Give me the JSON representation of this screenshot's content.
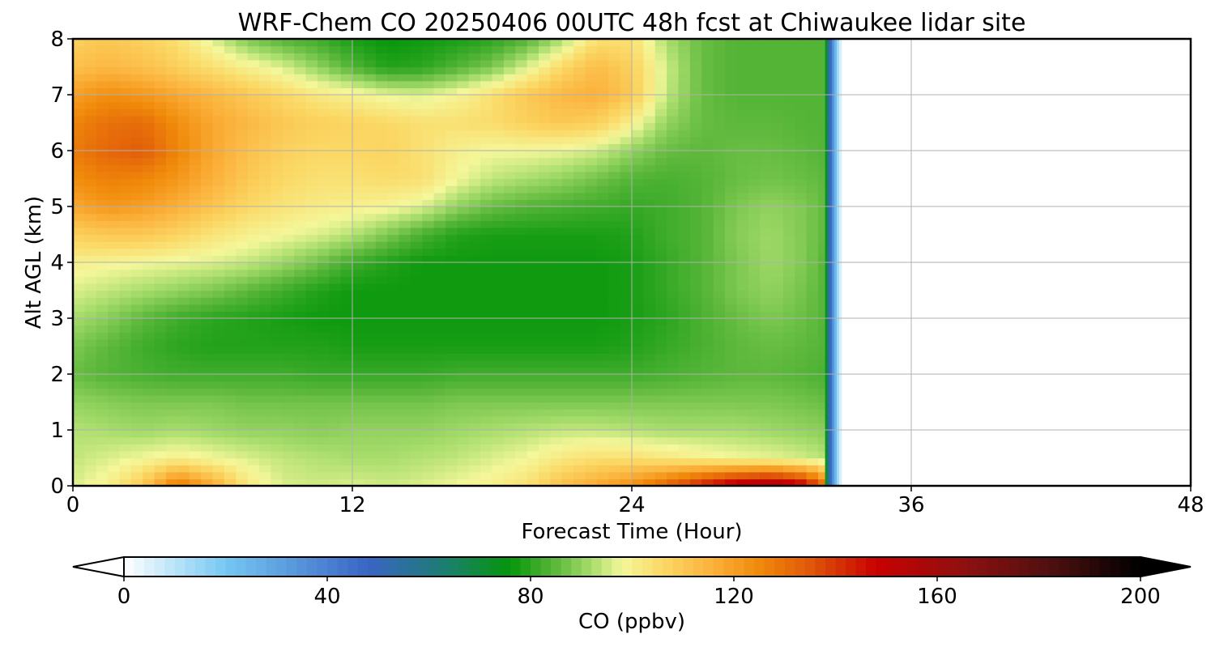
{
  "chart_data": {
    "type": "heatmap",
    "title": "WRF-Chem CO  20250406 00UTC 48h fcst at Chiwaukee lidar site",
    "xlabel": "Forecast Time (Hour)",
    "ylabel": "Alt AGL (km)",
    "xlim": [
      0,
      48
    ],
    "ylim": [
      0,
      8
    ],
    "xticks": [
      "0",
      "12",
      "24",
      "36",
      "48"
    ],
    "yticks": [
      "0",
      "1",
      "2",
      "3",
      "4",
      "5",
      "6",
      "7",
      "8"
    ],
    "grid": true,
    "data_end_hour": 33,
    "x_hours": [
      0,
      1.5,
      3,
      4.5,
      6,
      7.5,
      9,
      10.5,
      12,
      13.5,
      15,
      16.5,
      18,
      19.5,
      21,
      22.5,
      24,
      25.5,
      27,
      28.5,
      30,
      31.5,
      32.3
    ],
    "y_km": [
      0,
      0.5,
      1,
      1.5,
      2,
      2.5,
      3,
      3.5,
      4,
      4.5,
      5,
      5.5,
      6,
      6.5,
      7,
      7.5,
      8
    ],
    "co_ppbv_rows_by_altitude": [
      [
        96,
        100,
        110,
        130,
        118,
        102,
        96,
        95,
        96,
        95,
        96,
        98,
        100,
        104,
        112,
        118,
        124,
        134,
        145,
        155,
        160,
        150,
        130
      ],
      [
        94,
        96,
        98,
        100,
        98,
        96,
        94,
        93,
        92,
        92,
        93,
        94,
        96,
        98,
        102,
        104,
        104,
        102,
        100,
        98,
        97,
        95,
        93
      ],
      [
        93,
        92,
        91,
        92,
        91,
        90,
        90,
        89,
        90,
        90,
        90,
        91,
        92,
        93,
        94,
        94,
        93,
        92,
        92,
        92,
        91,
        90,
        89
      ],
      [
        90,
        89,
        88,
        88,
        88,
        87,
        87,
        87,
        87,
        87,
        87,
        88,
        88,
        88,
        88,
        88,
        88,
        88,
        88,
        88,
        88,
        87,
        86
      ],
      [
        86,
        84,
        83,
        82,
        82,
        82,
        82,
        81,
        81,
        81,
        81,
        82,
        82,
        82,
        82,
        82,
        82,
        83,
        84,
        85,
        85,
        84,
        83
      ],
      [
        88,
        85,
        82,
        80,
        79,
        79,
        79,
        79,
        78,
        78,
        78,
        78,
        78,
        78,
        78,
        78,
        79,
        81,
        83,
        85,
        86,
        85,
        84
      ],
      [
        92,
        89,
        85,
        82,
        80,
        79,
        78,
        77,
        77,
        77,
        77,
        77,
        77,
        77,
        77,
        77,
        78,
        80,
        83,
        86,
        88,
        86,
        84
      ],
      [
        96,
        94,
        92,
        90,
        88,
        85,
        82,
        79,
        77,
        77,
        77,
        77,
        77,
        77,
        77,
        77,
        78,
        81,
        84,
        88,
        90,
        87,
        84
      ],
      [
        100,
        99,
        98,
        97,
        96,
        94,
        91,
        87,
        82,
        79,
        77,
        77,
        77,
        77,
        77,
        77,
        78,
        81,
        84,
        88,
        91,
        88,
        84
      ],
      [
        108,
        110,
        110,
        107,
        103,
        100,
        98,
        96,
        93,
        88,
        83,
        79,
        78,
        78,
        78,
        78,
        79,
        82,
        84,
        89,
        91,
        88,
        85
      ],
      [
        118,
        122,
        120,
        116,
        111,
        106,
        103,
        101,
        100,
        99,
        96,
        90,
        86,
        84,
        83,
        82,
        81,
        82,
        84,
        88,
        90,
        88,
        85
      ],
      [
        124,
        127,
        126,
        122,
        116,
        110,
        106,
        104,
        104,
        105,
        104,
        98,
        94,
        92,
        90,
        87,
        84,
        83,
        84,
        86,
        87,
        86,
        85
      ],
      [
        128,
        132,
        134,
        126,
        118,
        112,
        108,
        106,
        106,
        107,
        104,
        100,
        98,
        98,
        97,
        95,
        90,
        86,
        85,
        86,
        86,
        85,
        84
      ],
      [
        126,
        130,
        131,
        124,
        118,
        114,
        110,
        108,
        107,
        106,
        104,
        104,
        105,
        108,
        110,
        108,
        100,
        90,
        86,
        85,
        85,
        84,
        84
      ],
      [
        120,
        124,
        122,
        118,
        114,
        110,
        106,
        102,
        100,
        97,
        96,
        99,
        104,
        110,
        114,
        116,
        110,
        94,
        86,
        84,
        84,
        84,
        84
      ],
      [
        112,
        114,
        112,
        108,
        104,
        100,
        96,
        90,
        84,
        79,
        80,
        84,
        88,
        96,
        106,
        113,
        108,
        95,
        86,
        84,
        84,
        84,
        84
      ],
      [
        108,
        110,
        108,
        104,
        96,
        88,
        84,
        82,
        78,
        76,
        77,
        78,
        80,
        84,
        92,
        104,
        104,
        92,
        86,
        84,
        84,
        84,
        84
      ]
    ],
    "colorbar": {
      "label": "CO  (ppbv)",
      "min": 0,
      "max": 200,
      "ticks": [
        "0",
        "40",
        "80",
        "120",
        "160",
        "200"
      ],
      "extend": "both",
      "color_stops": [
        {
          "v": 0,
          "c": "#ffffff"
        },
        {
          "v": 20,
          "c": "#74c8f2"
        },
        {
          "v": 48,
          "c": "#3a64c4"
        },
        {
          "v": 62,
          "c": "#1e7c78"
        },
        {
          "v": 76,
          "c": "#05960a"
        },
        {
          "v": 85,
          "c": "#5db83c"
        },
        {
          "v": 92,
          "c": "#a8dd6c"
        },
        {
          "v": 98,
          "c": "#f4f79a"
        },
        {
          "v": 106,
          "c": "#fbd865"
        },
        {
          "v": 116,
          "c": "#fbb03a"
        },
        {
          "v": 125,
          "c": "#f08a0a"
        },
        {
          "v": 135,
          "c": "#e0580a"
        },
        {
          "v": 148,
          "c": "#c80000"
        },
        {
          "v": 165,
          "c": "#901010"
        },
        {
          "v": 182,
          "c": "#501010"
        },
        {
          "v": 200,
          "c": "#000000"
        }
      ]
    }
  }
}
